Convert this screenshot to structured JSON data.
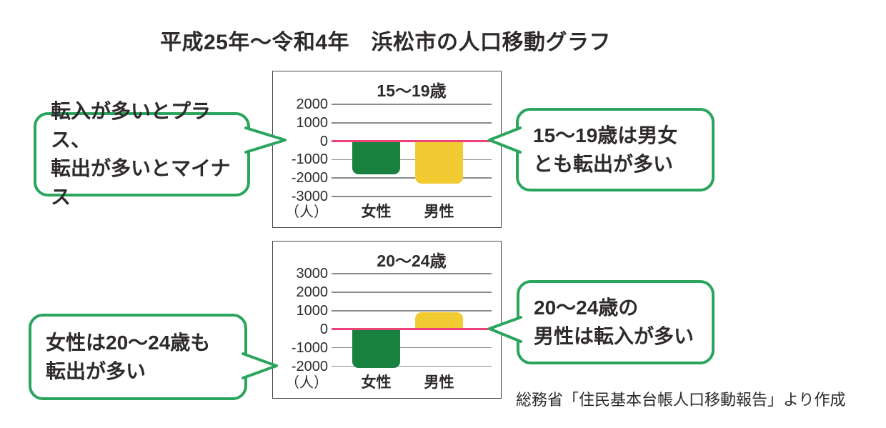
{
  "page": {
    "title": "平成25年〜令和4年　浜松市の人口移動グラフ",
    "source_note": "総務省「住民基本台帳人口移動報告」より作成"
  },
  "colors": {
    "female_bar": "#198140",
    "male_bar": "#F2CB33",
    "zero_line": "#ED4277",
    "gridline": "#8B8B8B",
    "chart_frame": "#474747",
    "callout_border": "#2BA55E",
    "text": "#2E2A2B"
  },
  "callouts": [
    {
      "id": "axis-explainer",
      "line1": "転入が多いとプラス、",
      "line2": "転出が多いとマイナス"
    },
    {
      "id": "teens-note",
      "line1": "15〜19歳は男女",
      "line2": "とも転出が多い"
    },
    {
      "id": "female-20s-note",
      "line1": "女性は20〜24歳も",
      "line2": "転出が多い"
    },
    {
      "id": "male-20s-note",
      "line1": "20〜24歳の",
      "line2": "男性は転入が多い"
    }
  ],
  "chart_data": [
    {
      "type": "bar",
      "title": "15〜19歳",
      "unit_label": "（人）",
      "categories": [
        "女性",
        "男性"
      ],
      "values": [
        -1800,
        -2300
      ],
      "series_colors": [
        "#198140",
        "#F2CB33"
      ],
      "yticks": [
        2000,
        1000,
        0,
        -1000,
        -2000,
        -3000
      ],
      "ylim": [
        2400,
        -3400
      ],
      "grid": true,
      "zero_line": true,
      "legend": "none"
    },
    {
      "type": "bar",
      "title": "20〜24歳",
      "unit_label": "（人）",
      "categories": [
        "女性",
        "男性"
      ],
      "values": [
        -2100,
        900
      ],
      "series_colors": [
        "#198140",
        "#F2CB33"
      ],
      "yticks": [
        3000,
        2000,
        1000,
        0,
        -1000,
        -2000
      ],
      "ylim": [
        3400,
        -2400
      ],
      "grid": true,
      "zero_line": true,
      "legend": "none"
    }
  ]
}
